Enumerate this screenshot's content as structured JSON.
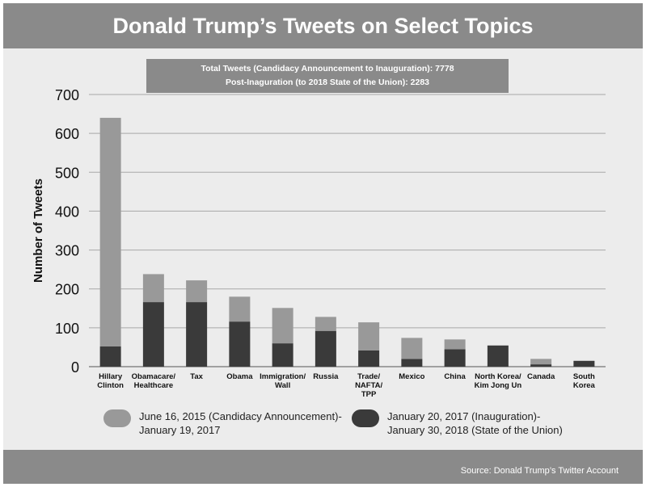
{
  "header": {
    "title": "Donald Trump’s Tweets on Select Topics"
  },
  "totals": {
    "line1": "Total Tweets (Candidacy Announcement to Inauguration): 7778",
    "line2": "Post-Inaguration (to 2018 State of the Union): 2283"
  },
  "footer": {
    "source": "Source: Donald Trump’s Twitter Account"
  },
  "colors": {
    "light": "#999999",
    "dark": "#3a3a3a",
    "grid": "#a8a8a8",
    "band": "#8a8a8a"
  },
  "chart_data": {
    "type": "bar",
    "stacked": true,
    "title": "Donald Trump’s Tweets on Select Topics",
    "ylabel": "Number of Tweets",
    "xlabel": "",
    "ylim": [
      0,
      700
    ],
    "yticks": [
      0,
      100,
      200,
      300,
      400,
      500,
      600,
      700
    ],
    "grid": true,
    "legend_position": "bottom",
    "categories": [
      [
        "Hillary",
        "Clinton"
      ],
      [
        "Obamacare/",
        "Healthcare"
      ],
      [
        "Tax"
      ],
      [
        "Obama"
      ],
      [
        "Immigration/",
        "Wall"
      ],
      [
        "Russia"
      ],
      [
        "Trade/",
        "NAFTA/",
        "TPP"
      ],
      [
        "Mexico"
      ],
      [
        "China"
      ],
      [
        "North Korea/",
        "Kim Jong Un"
      ],
      [
        "Canada"
      ],
      [
        "South",
        "Korea"
      ]
    ],
    "series": [
      {
        "name": "January 20, 2017 (Inauguration)- January 30, 2018 (State of the Union)",
        "legend_lines": [
          "January 20, 2017 (Inauguration)-",
          "January 30, 2018 (State of the Union)"
        ],
        "color": "#3a3a3a",
        "values": [
          52,
          166,
          166,
          116,
          60,
          92,
          42,
          20,
          45,
          54,
          6,
          15
        ]
      },
      {
        "name": "June 16, 2015 (Candidacy Announcement)- January 19, 2017",
        "legend_lines": [
          "June 16, 2015 (Candidacy Announcement)-",
          "January 19, 2017"
        ],
        "color": "#999999",
        "values": [
          588,
          72,
          56,
          64,
          91,
          36,
          72,
          54,
          25,
          1,
          14,
          0
        ]
      }
    ]
  }
}
